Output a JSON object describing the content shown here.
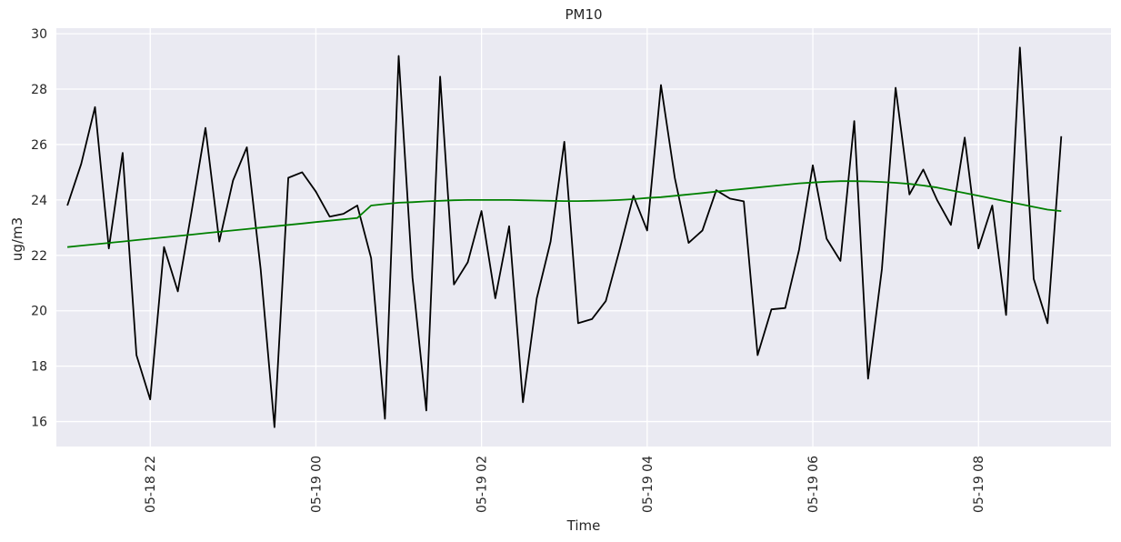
{
  "chart_data": {
    "type": "line",
    "title": "PM10",
    "xlabel": "Time",
    "ylabel": "ug/m3",
    "x_start": "2023-05-18 21:00",
    "x_end": "2023-05-19 09:00",
    "xlim": [
      "2023-05-18 20:52",
      "2023-05-19 09:36"
    ],
    "ylim": [
      15.1,
      30.2
    ],
    "yticks": [
      16,
      18,
      20,
      22,
      24,
      26,
      28,
      30
    ],
    "xticks": [
      "05-18 22",
      "05-19 00",
      "05-19 02",
      "05-19 04",
      "05-19 06",
      "05-19 08"
    ],
    "grid": true,
    "background": "#eaeaf2",
    "series": [
      {
        "color": "#000000",
        "values": [
          23.8,
          25.3,
          27.35,
          22.25,
          25.7,
          18.4,
          16.8,
          22.3,
          20.7,
          23.6,
          26.6,
          22.5,
          24.7,
          25.9,
          21.5,
          15.8,
          24.8,
          25.0,
          24.3,
          23.4,
          23.5,
          23.8,
          21.9,
          16.1,
          29.2,
          21.2,
          16.4,
          28.45,
          20.95,
          21.75,
          23.6,
          20.45,
          23.05,
          16.7,
          20.45,
          22.5,
          26.1,
          19.55,
          19.7,
          20.35,
          22.2,
          24.15,
          22.9,
          28.15,
          24.8,
          22.45,
          22.9,
          24.35,
          24.05,
          23.95,
          18.4,
          20.05,
          20.1,
          22.2,
          25.25,
          22.6,
          21.8,
          26.85,
          17.55,
          21.5,
          28.05,
          24.2,
          25.1,
          24.0,
          23.1,
          26.25,
          22.25,
          23.8,
          19.85,
          29.5,
          21.15,
          19.55,
          26.3
        ]
      },
      {
        "color": "#008000",
        "values": [
          22.3,
          22.35,
          22.4,
          22.45,
          22.5,
          22.55,
          22.6,
          22.65,
          22.7,
          22.75,
          22.8,
          22.85,
          22.9,
          22.95,
          23.0,
          23.05,
          23.1,
          23.15,
          23.2,
          23.25,
          23.3,
          23.35,
          23.8,
          23.85,
          23.9,
          23.92,
          23.95,
          23.97,
          23.99,
          24.0,
          24.0,
          24.0,
          24.0,
          23.99,
          23.98,
          23.97,
          23.96,
          23.96,
          23.97,
          23.98,
          24.0,
          24.03,
          24.07,
          24.1,
          24.15,
          24.2,
          24.25,
          24.3,
          24.35,
          24.4,
          24.45,
          24.5,
          24.55,
          24.6,
          24.63,
          24.66,
          24.68,
          24.68,
          24.67,
          24.65,
          24.62,
          24.58,
          24.52,
          24.45,
          24.35,
          24.25,
          24.15,
          24.05,
          23.95,
          23.85,
          23.75,
          23.65,
          23.6
        ]
      }
    ]
  }
}
